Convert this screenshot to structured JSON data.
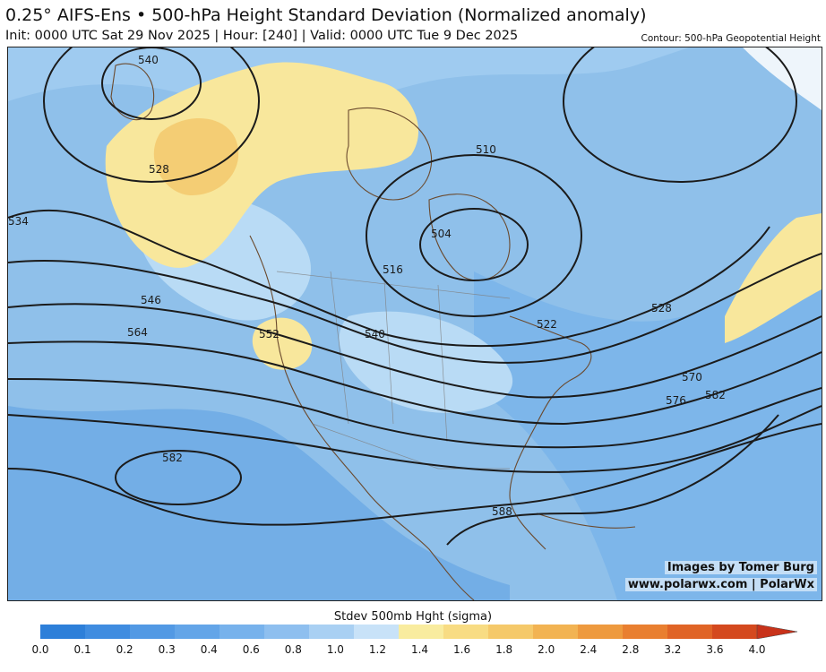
{
  "header": {
    "title": "0.25° AIFS-Ens • 500-hPa Height Standard Deviation (Normalized anomaly)",
    "subtitle": "Init: 0000 UTC Sat 29 Nov 2025 | Hour: [240] | Valid: 0000 UTC Tue 9 Dec 2025",
    "contour_note": "Contour: 500-hPa Geopotential Height"
  },
  "map": {
    "background_color": "#8fc0ea",
    "shading": {
      "low_spread_color": "#73aee6",
      "mid_spread_color": "#b9dbf5",
      "high_spread_color": "#f8e79c",
      "peak_spread_color": "#f4cd74"
    },
    "contour_labels": [
      "540",
      "528",
      "534",
      "546",
      "564",
      "552",
      "540",
      "516",
      "504",
      "510",
      "522",
      "528",
      "570",
      "576",
      "582",
      "582",
      "588"
    ]
  },
  "credits": {
    "line1": "Images by Tomer Burg",
    "line2": "www.polarwx.com | PolarWx"
  },
  "colorbar": {
    "title": "Stdev 500mb Hght (sigma)",
    "ticks": [
      "0.0",
      "0.1",
      "0.2",
      "0.3",
      "0.4",
      "0.6",
      "0.8",
      "1.0",
      "1.2",
      "1.4",
      "1.6",
      "1.8",
      "2.0",
      "2.4",
      "2.8",
      "3.2",
      "3.6",
      "4.0"
    ],
    "colors": [
      "#2d7fd9",
      "#3f8ce0",
      "#5299e4",
      "#63a5e8",
      "#77b2ec",
      "#8ebfef",
      "#a9d0f3",
      "#c8e2f8",
      "#f9ec9f",
      "#f8dc83",
      "#f5c96a",
      "#f2b352",
      "#ee9a3e",
      "#e97f30",
      "#e06426",
      "#d4491e",
      "#c8321a"
    ]
  }
}
